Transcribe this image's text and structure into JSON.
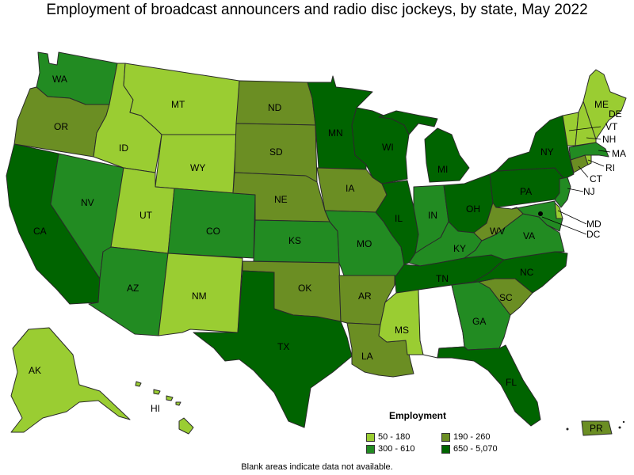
{
  "title": "Employment of broadcast announcers and radio disc jockeys, by state, May 2022",
  "legend": {
    "title": "Employment",
    "bins": [
      {
        "label": "50 - 180",
        "color": "#9acd32"
      },
      {
        "label": "190 - 260",
        "color": "#6b8e23"
      },
      {
        "label": "300 - 610",
        "color": "#228b22"
      },
      {
        "label": "650 - 5,070",
        "color": "#006400"
      }
    ]
  },
  "note": "Blank areas indicate data not available.",
  "states": [
    {
      "abbr": "WA",
      "bin": 2
    },
    {
      "abbr": "OR",
      "bin": 1
    },
    {
      "abbr": "CA",
      "bin": 3
    },
    {
      "abbr": "NV",
      "bin": 2
    },
    {
      "abbr": "ID",
      "bin": 0
    },
    {
      "abbr": "MT",
      "bin": 0
    },
    {
      "abbr": "WY",
      "bin": 0
    },
    {
      "abbr": "UT",
      "bin": 0
    },
    {
      "abbr": "AZ",
      "bin": 2
    },
    {
      "abbr": "CO",
      "bin": 2
    },
    {
      "abbr": "NM",
      "bin": 0
    },
    {
      "abbr": "ND",
      "bin": 1
    },
    {
      "abbr": "SD",
      "bin": 1
    },
    {
      "abbr": "NE",
      "bin": 1
    },
    {
      "abbr": "KS",
      "bin": 2
    },
    {
      "abbr": "OK",
      "bin": 1
    },
    {
      "abbr": "TX",
      "bin": 3
    },
    {
      "abbr": "MN",
      "bin": 3
    },
    {
      "abbr": "IA",
      "bin": 1
    },
    {
      "abbr": "MO",
      "bin": 2
    },
    {
      "abbr": "AR",
      "bin": 1
    },
    {
      "abbr": "LA",
      "bin": 1
    },
    {
      "abbr": "WI",
      "bin": 3
    },
    {
      "abbr": "IL",
      "bin": 3
    },
    {
      "abbr": "MI",
      "bin": 3
    },
    {
      "abbr": "IN",
      "bin": 2
    },
    {
      "abbr": "OH",
      "bin": 3
    },
    {
      "abbr": "KY",
      "bin": 2
    },
    {
      "abbr": "TN",
      "bin": 3
    },
    {
      "abbr": "MS",
      "bin": 0
    },
    {
      "abbr": "AL",
      "bin": null
    },
    {
      "abbr": "GA",
      "bin": 2
    },
    {
      "abbr": "FL",
      "bin": 3
    },
    {
      "abbr": "SC",
      "bin": 1
    },
    {
      "abbr": "NC",
      "bin": 3
    },
    {
      "abbr": "VA",
      "bin": 2
    },
    {
      "abbr": "WV",
      "bin": 1
    },
    {
      "abbr": "PA",
      "bin": 3
    },
    {
      "abbr": "NY",
      "bin": 3
    },
    {
      "abbr": "VT",
      "bin": 0
    },
    {
      "abbr": "NH",
      "bin": 0
    },
    {
      "abbr": "ME",
      "bin": 0
    },
    {
      "abbr": "MA",
      "bin": 2
    },
    {
      "abbr": "RI",
      "bin": 0
    },
    {
      "abbr": "CT",
      "bin": 1
    },
    {
      "abbr": "NJ",
      "bin": 2
    },
    {
      "abbr": "DE",
      "bin": 0
    },
    {
      "abbr": "MD",
      "bin": 2
    },
    {
      "abbr": "DC",
      "bin": 3
    },
    {
      "abbr": "AK",
      "bin": 0
    },
    {
      "abbr": "HI",
      "bin": 0
    },
    {
      "abbr": "PR",
      "bin": 1
    }
  ]
}
